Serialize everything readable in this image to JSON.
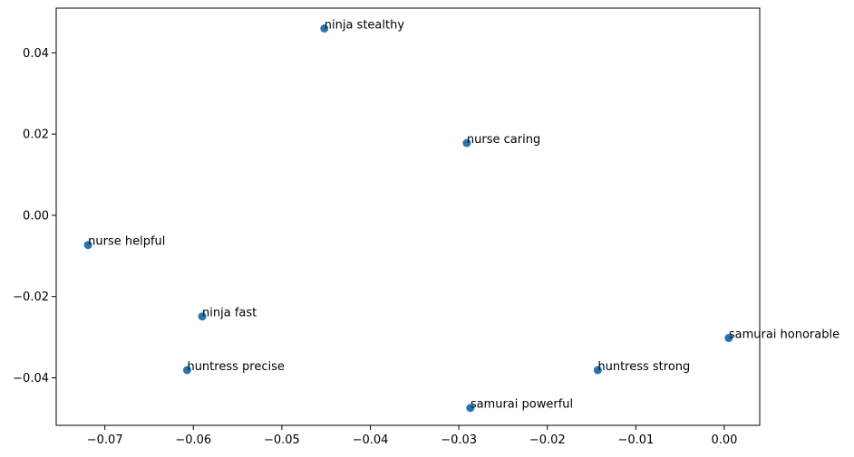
{
  "chart_data": {
    "type": "scatter",
    "title": "",
    "xlabel": "",
    "ylabel": "",
    "xlim": [
      -0.0755,
      0.004
    ],
    "ylim": [
      -0.0517,
      0.051
    ],
    "grid": false,
    "colors": {
      "point": "#1f77b4",
      "axis": "#000000"
    },
    "x_ticks": [
      {
        "value": -0.07,
        "label": "−0.07"
      },
      {
        "value": -0.06,
        "label": "−0.06"
      },
      {
        "value": -0.05,
        "label": "−0.05"
      },
      {
        "value": -0.04,
        "label": "−0.04"
      },
      {
        "value": -0.03,
        "label": "−0.03"
      },
      {
        "value": -0.02,
        "label": "−0.02"
      },
      {
        "value": -0.01,
        "label": "−0.01"
      },
      {
        "value": 0.0,
        "label": "0.00"
      }
    ],
    "y_ticks": [
      {
        "value": -0.04,
        "label": "−0.04"
      },
      {
        "value": -0.02,
        "label": "−0.02"
      },
      {
        "value": 0.0,
        "label": "0.00"
      },
      {
        "value": 0.02,
        "label": "0.02"
      },
      {
        "value": 0.04,
        "label": "0.04"
      }
    ],
    "points": [
      {
        "label": "ninja stealthy",
        "x": -0.0452,
        "y": 0.046
      },
      {
        "label": "nurse caring",
        "x": -0.0291,
        "y": 0.0178
      },
      {
        "label": "nurse helpful",
        "x": -0.0719,
        "y": -0.0073
      },
      {
        "label": "ninja fast",
        "x": -0.059,
        "y": -0.0249
      },
      {
        "label": "samurai honorable",
        "x": 0.0005,
        "y": -0.0302
      },
      {
        "label": "huntress precise",
        "x": -0.0607,
        "y": -0.0381
      },
      {
        "label": "huntress strong",
        "x": -0.0143,
        "y": -0.0381
      },
      {
        "label": "samurai powerful",
        "x": -0.0287,
        "y": -0.0474
      }
    ]
  }
}
